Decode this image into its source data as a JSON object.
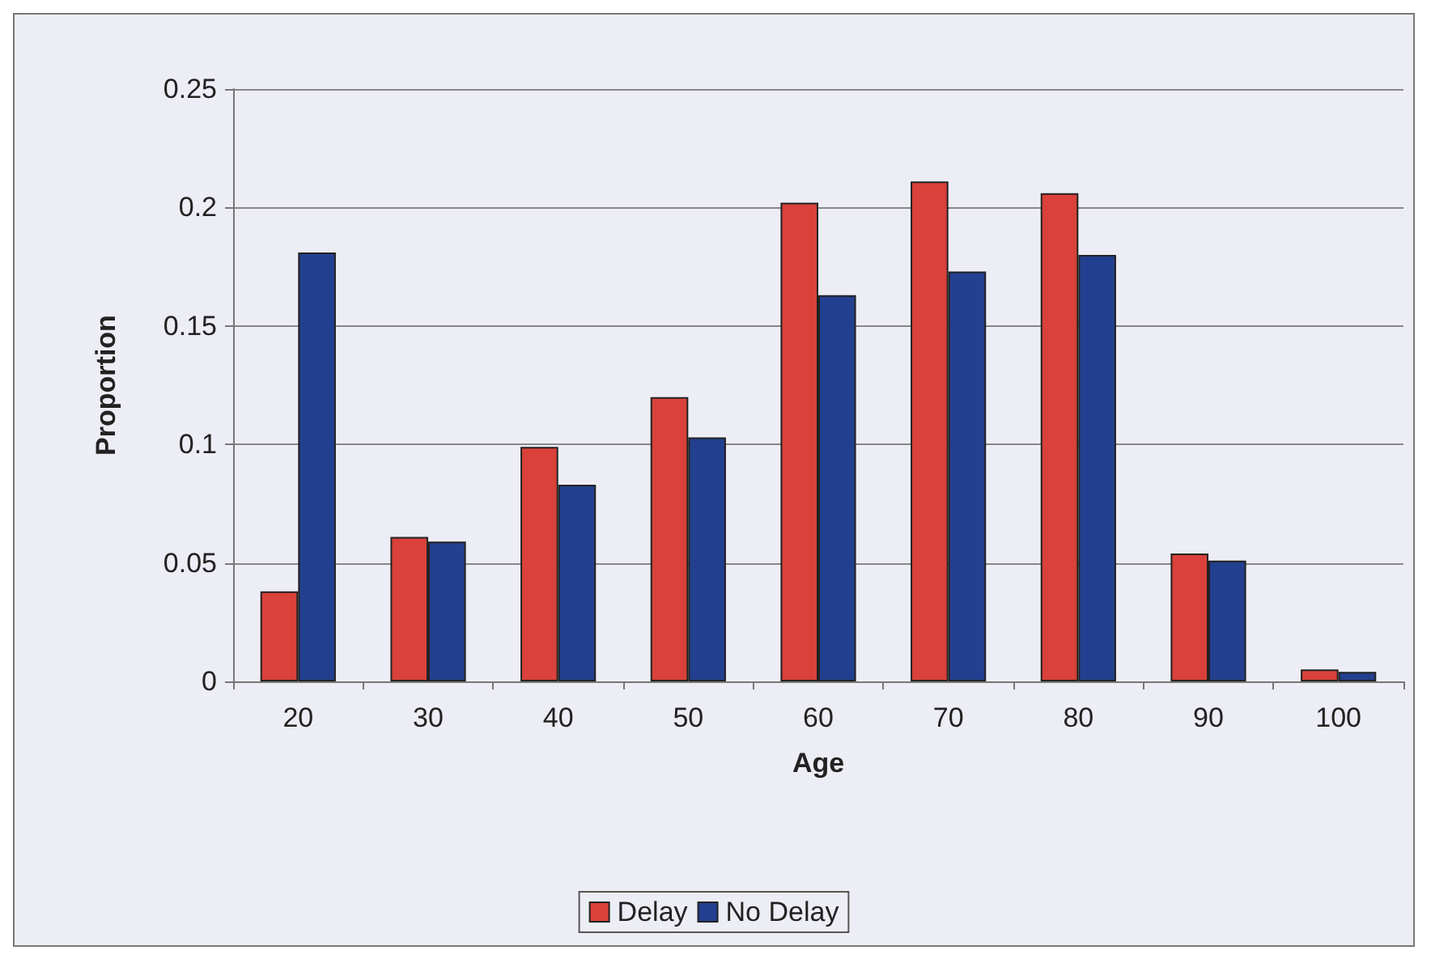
{
  "chart_data": {
    "type": "bar",
    "xlabel": "Age",
    "ylabel": "Proportion",
    "categories": [
      "20",
      "30",
      "40",
      "50",
      "60",
      "70",
      "80",
      "90",
      "100"
    ],
    "series": [
      {
        "name": "Delay",
        "color": "#d9413a",
        "values": [
          0.038,
          0.061,
          0.099,
          0.12,
          0.202,
          0.211,
          0.206,
          0.054,
          0.005
        ]
      },
      {
        "name": "No Delay",
        "color": "#233f8f",
        "values": [
          0.181,
          0.059,
          0.083,
          0.103,
          0.163,
          0.173,
          0.18,
          0.051,
          0.004
        ]
      }
    ],
    "ylim": [
      0,
      0.25
    ],
    "yticks": [
      0,
      0.05,
      0.1,
      0.15,
      0.2,
      0.25
    ],
    "grid": "y",
    "legend": "bottom"
  }
}
